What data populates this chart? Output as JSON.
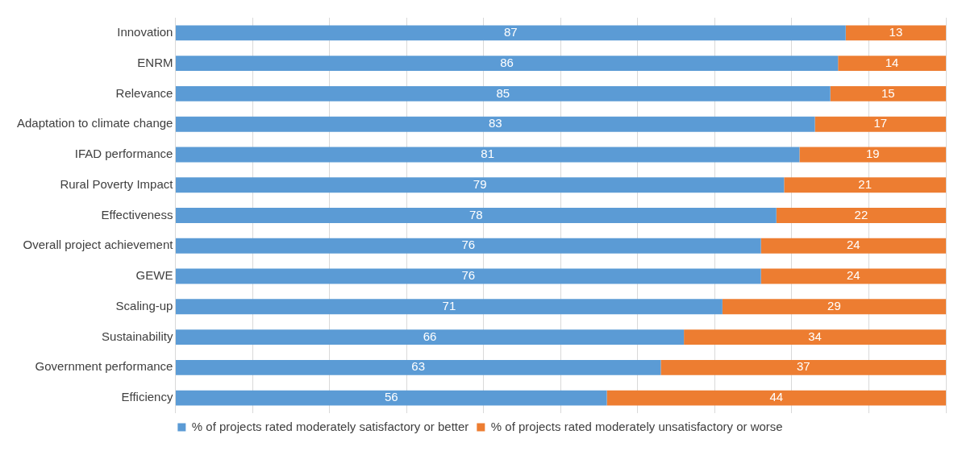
{
  "chart_data": {
    "type": "bar",
    "orientation": "horizontal",
    "stacked": true,
    "categories": [
      "Innovation",
      "ENRM",
      "Relevance",
      "Adaptation to climate change",
      "IFAD performance",
      "Rural Poverty Impact",
      "Effectiveness",
      "Overall project achievement",
      "GEWE",
      "Scaling-up",
      "Sustainability",
      "Government performance",
      "Efficiency"
    ],
    "series": [
      {
        "name": "% of projects rated moderately satisfactory or better",
        "color": "#5b9bd5",
        "values": [
          87,
          86,
          85,
          83,
          81,
          79,
          78,
          76,
          76,
          71,
          66,
          63,
          56
        ]
      },
      {
        "name": "% of projects rated moderately unsatisfactory or worse",
        "color": "#ed7d31",
        "values": [
          13,
          14,
          15,
          17,
          19,
          21,
          22,
          24,
          24,
          29,
          34,
          37,
          44
        ]
      }
    ],
    "xlim": [
      0,
      100
    ],
    "xticks": [
      {
        "value": 0,
        "label": null
      },
      {
        "value": 10,
        "label": null
      },
      {
        "value": 20,
        "label": null
      },
      {
        "value": 30,
        "label": null
      },
      {
        "value": 40,
        "label": null
      },
      {
        "value": 50,
        "label": null
      },
      {
        "value": 60,
        "label": null
      },
      {
        "value": 70,
        "label": null
      },
      {
        "value": 80,
        "label": null
      },
      {
        "value": 90,
        "label": null
      },
      {
        "value": 100,
        "label": null
      }
    ],
    "tick_labels": "y",
    "grid": "x",
    "legend": "bottom",
    "data_labels": true
  }
}
